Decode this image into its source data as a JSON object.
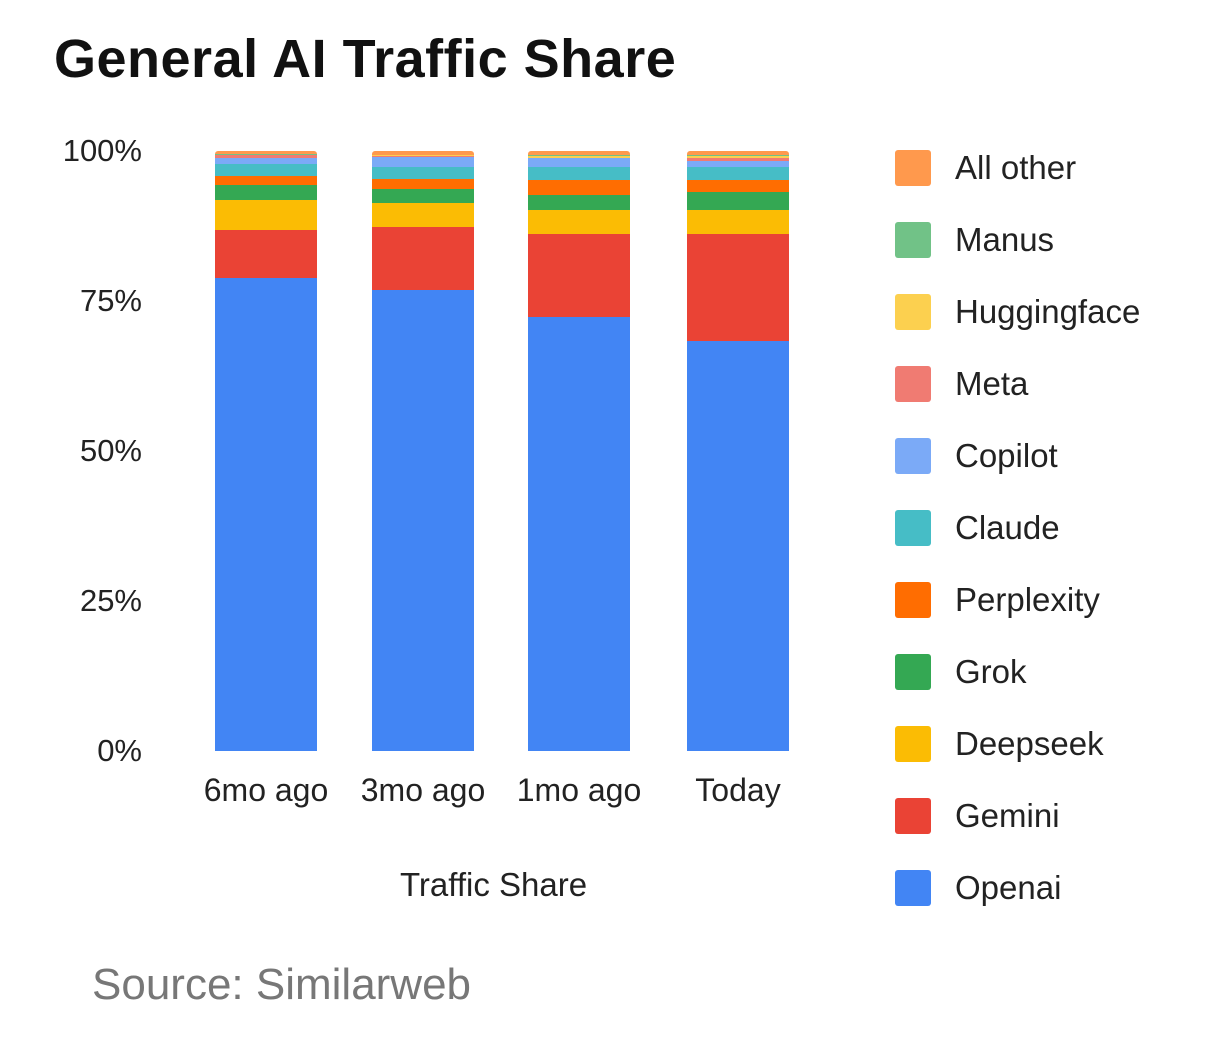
{
  "title": "General AI Traffic Share",
  "source": "Source: Similarweb",
  "chart_data": {
    "type": "bar",
    "stacked": true,
    "normalized": true,
    "title": "General AI Traffic Share",
    "xlabel": "Traffic Share",
    "ylabel": "",
    "ylim": [
      0,
      100
    ],
    "yticks": [
      "0%",
      "25%",
      "50%",
      "75%",
      "100%"
    ],
    "categories": [
      "6mo ago",
      "3mo ago",
      "1mo ago",
      "Today"
    ],
    "legend_position": "right",
    "series": [
      {
        "name": "Openai",
        "color": "#4285f4",
        "values": [
          78.8,
          76.8,
          72.3,
          68.3
        ]
      },
      {
        "name": "Gemini",
        "color": "#ea4335",
        "values": [
          8.0,
          10.5,
          13.8,
          17.8
        ]
      },
      {
        "name": "Deepseek",
        "color": "#fbbc04",
        "values": [
          5.0,
          4.0,
          4.0,
          4.0
        ]
      },
      {
        "name": "Grok",
        "color": "#34a853",
        "values": [
          2.5,
          2.3,
          2.5,
          3.0
        ]
      },
      {
        "name": "Perplexity",
        "color": "#ff6d01",
        "values": [
          1.5,
          1.7,
          2.5,
          2.0
        ]
      },
      {
        "name": "Claude",
        "color": "#46bdc6",
        "values": [
          2.0,
          2.0,
          2.2,
          2.3
        ]
      },
      {
        "name": "Copilot",
        "color": "#7baaf7",
        "values": [
          1.0,
          1.7,
          1.5,
          1.0
        ]
      },
      {
        "name": "Meta",
        "color": "#f07b72",
        "values": [
          0.5,
          0.2,
          0.1,
          0.5
        ]
      },
      {
        "name": "Huggingface",
        "color": "#fcd04f",
        "values": [
          0.1,
          0.1,
          0.3,
          0.2
        ]
      },
      {
        "name": "Manus",
        "color": "#71c287",
        "values": [
          0.1,
          0.0,
          0.1,
          0.3
        ]
      },
      {
        "name": "All other",
        "color": "#ff994d",
        "values": [
          0.5,
          0.7,
          0.7,
          0.6
        ]
      }
    ]
  },
  "legend": [
    {
      "label": "All other",
      "color": "#ff994d"
    },
    {
      "label": "Manus",
      "color": "#71c287"
    },
    {
      "label": "Huggingface",
      "color": "#fcd04f"
    },
    {
      "label": "Meta",
      "color": "#f07b72"
    },
    {
      "label": "Copilot",
      "color": "#7baaf7"
    },
    {
      "label": "Claude",
      "color": "#46bdc6"
    },
    {
      "label": "Perplexity",
      "color": "#ff6d01"
    },
    {
      "label": "Grok",
      "color": "#34a853"
    },
    {
      "label": "Deepseek",
      "color": "#fbbc04"
    },
    {
      "label": "Gemini",
      "color": "#ea4335"
    },
    {
      "label": "Openai",
      "color": "#4285f4"
    }
  ]
}
